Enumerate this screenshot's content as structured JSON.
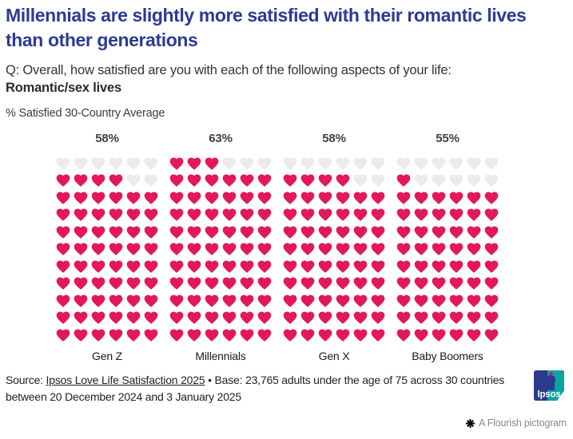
{
  "header": {
    "title": "Millennials are slightly more satisfied with their romantic lives than other generations",
    "question": "Q: Overall, how satisfied are you with each of the following aspects of your life:",
    "question_bold": "Romantic/sex lives",
    "note": "% Satisfied 30-Country Average"
  },
  "chart_data": {
    "type": "pictogram",
    "icon": "heart",
    "unit_per_icon": "1 heart = 1 percentage point",
    "categories": [
      "Gen Z",
      "Millennials",
      "Gen X",
      "Baby Boomers"
    ],
    "values": [
      58,
      63,
      58,
      55
    ],
    "value_labels": [
      "58%",
      "63%",
      "58%",
      "55%"
    ],
    "grid_rows": 11,
    "grid_columns": 6,
    "fill_direction": "bottom-up-left-to-right",
    "filled_color": "#E3175B",
    "empty_color": "#EBEBEB"
  },
  "footer": {
    "source_prefix": "Source: ",
    "source_link": "Ipsos Love Life Satisfaction 2025",
    "source_rest": " • Base: 23,765 adults under the age of 75 across 30 countries between 20 December 2024 and 3 January 2025",
    "ipsos_logo_text": "Ipsos",
    "attribution": "A Flourish pictogram"
  },
  "colors": {
    "title_blue": "#2D3A94",
    "heart_pink": "#E3175B",
    "heart_gray": "#EBEBEB",
    "ipsos_navy": "#2D3A8C",
    "ipsos_teal": "#0EA3A1",
    "ipsos_magenta": "#E5007D"
  }
}
